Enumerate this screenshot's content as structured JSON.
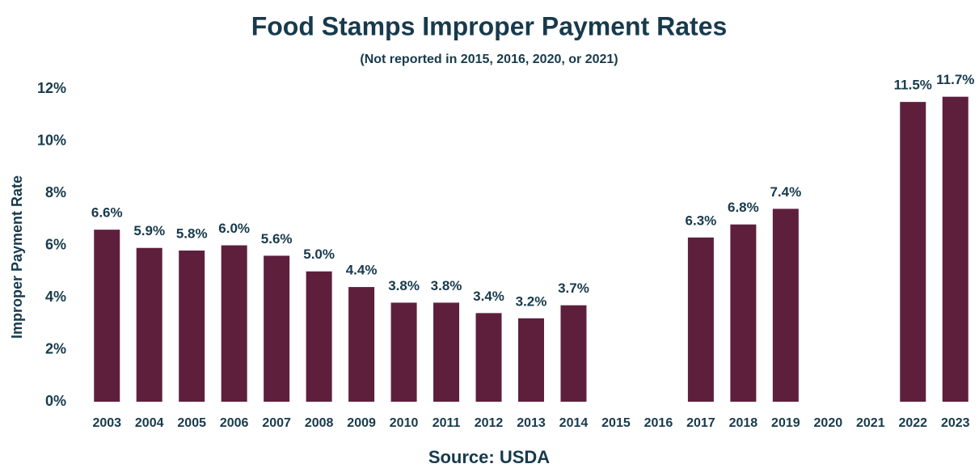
{
  "chart_data": {
    "type": "bar",
    "title": "Food Stamps Improper Payment Rates",
    "subtitle": "(Not reported in 2015, 2016, 2020, or 2021)",
    "source": "Source: USDA",
    "y_label": "Improper Payment Rate",
    "categories": [
      "2003",
      "2004",
      "2005",
      "2006",
      "2007",
      "2008",
      "2009",
      "2010",
      "2011",
      "2012",
      "2013",
      "2014",
      "2015",
      "2016",
      "2017",
      "2018",
      "2019",
      "2020",
      "2021",
      "2022",
      "2023"
    ],
    "values": [
      6.6,
      5.9,
      5.8,
      6.0,
      5.6,
      5.0,
      4.4,
      3.8,
      3.8,
      3.4,
      3.2,
      3.7,
      null,
      null,
      6.3,
      6.8,
      7.4,
      null,
      null,
      11.5,
      11.7
    ],
    "value_labels": [
      "6.6%",
      "5.9%",
      "5.8%",
      "6.0%",
      "5.6%",
      "5.0%",
      "4.4%",
      "3.8%",
      "3.8%",
      "3.4%",
      "3.2%",
      "3.7%",
      null,
      null,
      "6.3%",
      "6.8%",
      "7.4%",
      null,
      null,
      "11.5%",
      "11.7%"
    ],
    "color": "#5e1f3d",
    "ylim": [
      0,
      12
    ],
    "yticks": [
      {
        "value": 0,
        "label": "0%"
      },
      {
        "value": 2,
        "label": "2%"
      },
      {
        "value": 4,
        "label": "4%"
      },
      {
        "value": 6,
        "label": "6%"
      },
      {
        "value": 8,
        "label": "8%"
      },
      {
        "value": 10,
        "label": "10%"
      },
      {
        "value": 12,
        "label": "12%"
      }
    ],
    "grid": false
  }
}
